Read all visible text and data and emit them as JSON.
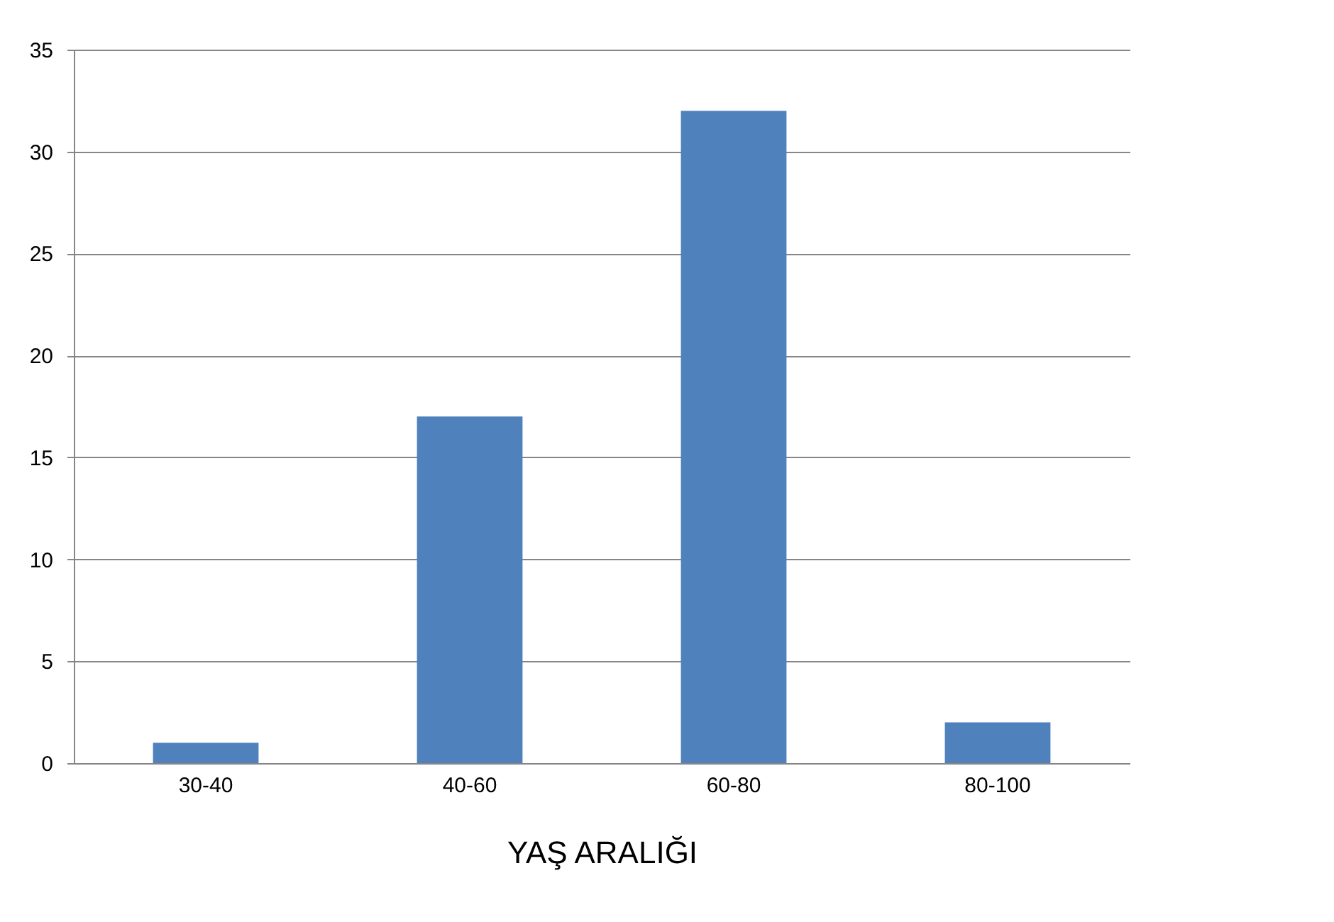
{
  "chart_data": {
    "type": "bar",
    "xlabel": "YAŞ ARALIĞI",
    "categories": [
      "30-40",
      "40-60",
      "60-80",
      "80-100"
    ],
    "values": [
      1,
      17,
      32,
      2
    ],
    "color": "#4f81bd",
    "ylim": [
      0,
      35
    ],
    "yticks": [
      0,
      5,
      10,
      15,
      20,
      25,
      30,
      35
    ],
    "grid": "y"
  }
}
